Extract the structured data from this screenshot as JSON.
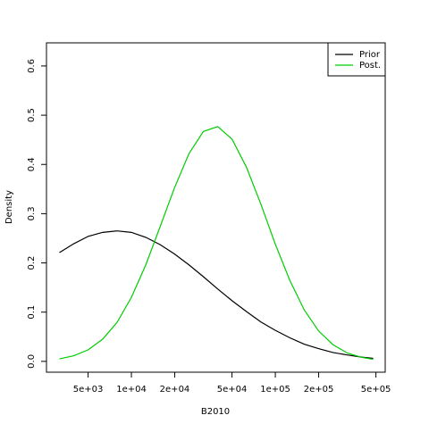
{
  "chart_data": {
    "type": "line",
    "x_label": "B2010",
    "y_label": "Density",
    "x": [
      3162,
      3981,
      5012,
      6310,
      7943,
      10000,
      12589,
      15849,
      19953,
      25119,
      31623,
      39811,
      50119,
      63096,
      79433,
      100000,
      125893,
      158489,
      199526,
      251189,
      316228,
      398107,
      478630
    ],
    "series": [
      {
        "name": "Prior",
        "color": "#000000",
        "values": [
          0.221,
          0.239,
          0.254,
          0.262,
          0.265,
          0.262,
          0.252,
          0.237,
          0.218,
          0.196,
          0.172,
          0.147,
          0.123,
          0.101,
          0.08,
          0.063,
          0.048,
          0.035,
          0.026,
          0.018,
          0.013,
          0.0086,
          0.0062
        ]
      },
      {
        "name": "Post.",
        "color": "#00cd00",
        "values": [
          0.0051,
          0.0114,
          0.0235,
          0.045,
          0.079,
          0.13,
          0.196,
          0.274,
          0.353,
          0.422,
          0.467,
          0.477,
          0.451,
          0.394,
          0.319,
          0.238,
          0.165,
          0.105,
          0.062,
          0.034,
          0.017,
          0.0081,
          0.0042
        ]
      }
    ],
    "xlog": true,
    "xlim": [
      2570,
      580000
    ],
    "xticks": [
      {
        "value": 5000,
        "label": "5e+03"
      },
      {
        "value": 10000,
        "label": "1e+04"
      },
      {
        "value": 20000,
        "label": "2e+04"
      },
      {
        "value": 50000,
        "label": "5e+04"
      },
      {
        "value": 100000,
        "label": "1e+05"
      },
      {
        "value": 200000,
        "label": "2e+05"
      },
      {
        "value": 500000,
        "label": "5e+05"
      }
    ],
    "ylim": [
      -0.022,
      0.647
    ],
    "yticks": [
      {
        "value": 0,
        "label": "0.0"
      },
      0.1,
      0.2,
      0.3,
      0.4,
      0.5,
      0.6
    ],
    "legend": "top-right"
  }
}
